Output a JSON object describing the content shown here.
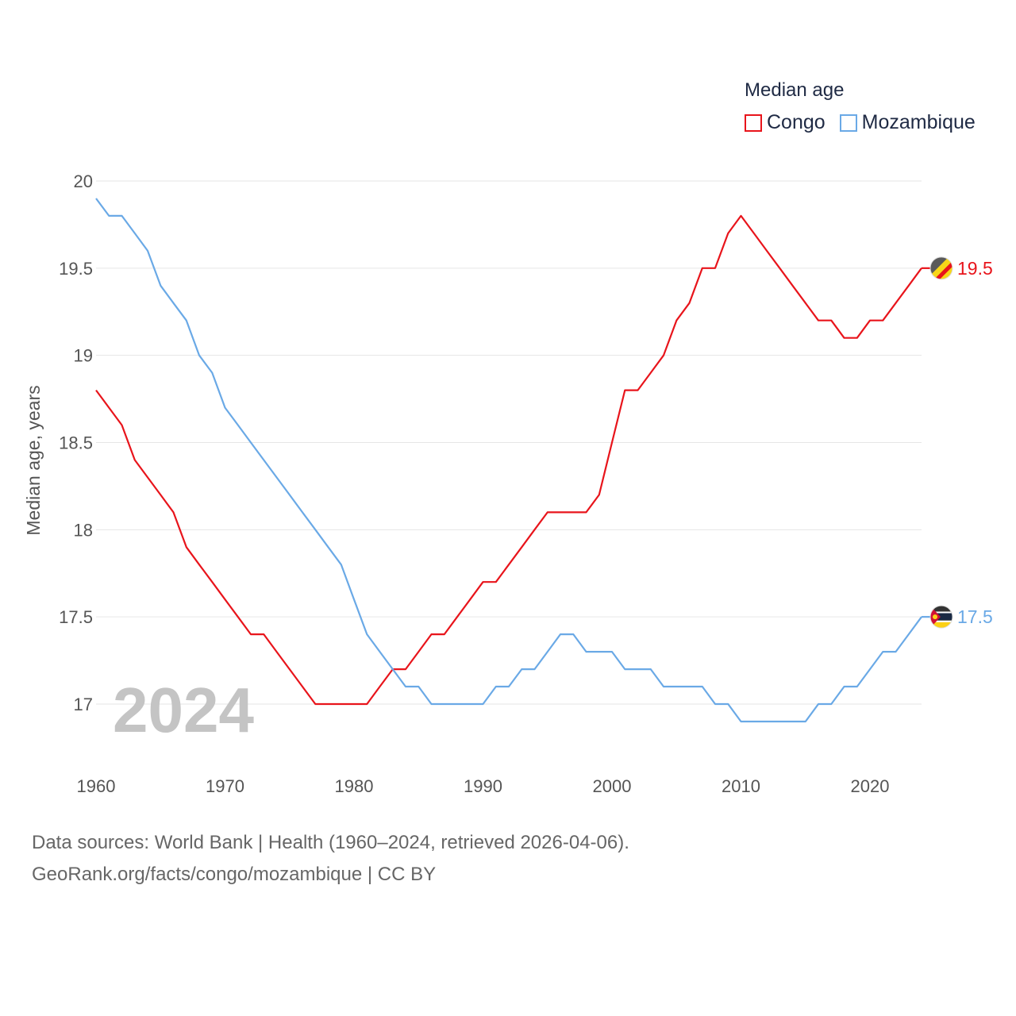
{
  "legend": {
    "title": "Median age",
    "items": [
      {
        "label": "Congo",
        "color": "#e8141b"
      },
      {
        "label": "Mozambique",
        "color": "#6aa9e6"
      }
    ]
  },
  "footer": {
    "line1": "Data sources: World Bank | Health (1960–2024, retrieved 2026-04-06).",
    "line2": "GeoRank.org/facts/congo/mozambique | CC BY"
  },
  "chart_data": {
    "type": "line",
    "title": "Median age",
    "ylabel": "Median age, years",
    "xlabel": "",
    "ylim": [
      16.7,
      20.0
    ],
    "xlim": [
      1960,
      2024
    ],
    "yticks": [
      17,
      17.5,
      18,
      18.5,
      19,
      19.5,
      20
    ],
    "ytick_labels": [
      "17",
      "17.5",
      "18",
      "18.5",
      "19",
      "19.5",
      "20"
    ],
    "xticks": [
      1960,
      1970,
      1980,
      1990,
      2000,
      2010,
      2020
    ],
    "xtick_labels": [
      "1960",
      "1970",
      "1980",
      "1990",
      "2000",
      "2010",
      "2020"
    ],
    "year_label": "2024",
    "grid": true,
    "legend_position": "top-right",
    "series": [
      {
        "name": "Congo",
        "color": "#e8141b",
        "end_label": "19.5",
        "x": [
          1960,
          1961,
          1962,
          1963,
          1964,
          1965,
          1966,
          1967,
          1968,
          1969,
          1970,
          1971,
          1972,
          1973,
          1974,
          1975,
          1976,
          1977,
          1978,
          1979,
          1980,
          1981,
          1982,
          1983,
          1984,
          1985,
          1986,
          1987,
          1988,
          1989,
          1990,
          1991,
          1992,
          1993,
          1994,
          1995,
          1996,
          1997,
          1998,
          1999,
          2000,
          2001,
          2002,
          2003,
          2004,
          2005,
          2006,
          2007,
          2008,
          2009,
          2010,
          2011,
          2012,
          2013,
          2014,
          2015,
          2016,
          2017,
          2018,
          2019,
          2020,
          2021,
          2022,
          2023,
          2024
        ],
        "values": [
          18.8,
          18.7,
          18.6,
          18.4,
          18.3,
          18.2,
          18.1,
          17.9,
          17.8,
          17.7,
          17.6,
          17.5,
          17.4,
          17.4,
          17.3,
          17.2,
          17.1,
          17.0,
          17.0,
          17.0,
          17.0,
          17.0,
          17.1,
          17.2,
          17.2,
          17.3,
          17.4,
          17.4,
          17.5,
          17.6,
          17.7,
          17.7,
          17.8,
          17.9,
          18.0,
          18.1,
          18.1,
          18.1,
          18.1,
          18.2,
          18.5,
          18.8,
          18.8,
          18.9,
          19.0,
          19.2,
          19.3,
          19.5,
          19.5,
          19.7,
          19.8,
          19.7,
          19.6,
          19.5,
          19.4,
          19.3,
          19.2,
          19.2,
          19.1,
          19.1,
          19.2,
          19.2,
          19.3,
          19.4,
          19.5
        ]
      },
      {
        "name": "Mozambique",
        "color": "#6aa9e6",
        "end_label": "17.5",
        "x": [
          1960,
          1961,
          1962,
          1963,
          1964,
          1965,
          1966,
          1967,
          1968,
          1969,
          1970,
          1971,
          1972,
          1973,
          1974,
          1975,
          1976,
          1977,
          1978,
          1979,
          1980,
          1981,
          1982,
          1983,
          1984,
          1985,
          1986,
          1987,
          1988,
          1989,
          1990,
          1991,
          1992,
          1993,
          1994,
          1995,
          1996,
          1997,
          1998,
          1999,
          2000,
          2001,
          2002,
          2003,
          2004,
          2005,
          2006,
          2007,
          2008,
          2009,
          2010,
          2011,
          2012,
          2013,
          2014,
          2015,
          2016,
          2017,
          2018,
          2019,
          2020,
          2021,
          2022,
          2023,
          2024
        ],
        "values": [
          19.9,
          19.8,
          19.8,
          19.7,
          19.6,
          19.4,
          19.3,
          19.2,
          19.0,
          18.9,
          18.7,
          18.6,
          18.5,
          18.4,
          18.3,
          18.2,
          18.1,
          18.0,
          17.9,
          17.8,
          17.6,
          17.4,
          17.3,
          17.2,
          17.1,
          17.1,
          17.0,
          17.0,
          17.0,
          17.0,
          17.0,
          17.1,
          17.1,
          17.2,
          17.2,
          17.3,
          17.4,
          17.4,
          17.3,
          17.3,
          17.3,
          17.2,
          17.2,
          17.2,
          17.1,
          17.1,
          17.1,
          17.1,
          17.0,
          17.0,
          16.9,
          16.9,
          16.9,
          16.9,
          16.9,
          16.9,
          17.0,
          17.0,
          17.1,
          17.1,
          17.2,
          17.3,
          17.3,
          17.4,
          17.5
        ]
      }
    ]
  }
}
